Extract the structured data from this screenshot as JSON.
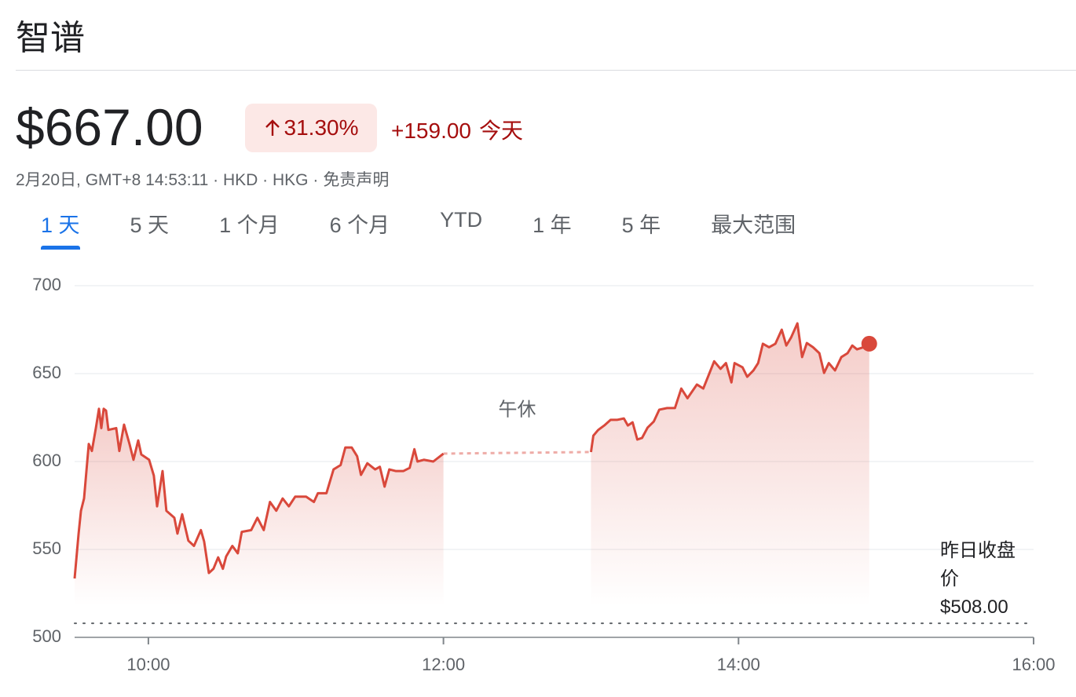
{
  "header": {
    "title": "智谱"
  },
  "quote": {
    "price": "$667.00",
    "change_percent": "31.30%",
    "change": "+159.00",
    "period": "今天",
    "meta": "2月20日, GMT+8 14:53:11 · HKD · HKG ·",
    "disclaimer": "免责声明"
  },
  "tabs": {
    "items": [
      "1 天",
      "5 天",
      "1 个月",
      "6 个月",
      "YTD",
      "1 年",
      "5 年",
      "最大范围"
    ],
    "active": 0
  },
  "chart_data": {
    "type": "line",
    "x": [
      9.5,
      9.527,
      9.543,
      9.564,
      9.58,
      9.596,
      9.617,
      9.644,
      9.665,
      9.681,
      9.697,
      9.713,
      9.729,
      9.782,
      9.803,
      9.835,
      9.872,
      9.899,
      9.931,
      9.952,
      10.005,
      10.037,
      10.059,
      10.096,
      10.122,
      10.176,
      10.197,
      10.229,
      10.271,
      10.309,
      10.356,
      10.378,
      10.41,
      10.441,
      10.473,
      10.505,
      10.527,
      10.569,
      10.606,
      10.633,
      10.697,
      10.739,
      10.782,
      10.824,
      10.867,
      10.91,
      10.952,
      10.995,
      11.069,
      11.122,
      11.149,
      11.207,
      11.255,
      11.303,
      11.335,
      11.378,
      11.415,
      11.441,
      11.484,
      11.537,
      11.569,
      11.601,
      11.633,
      11.676,
      11.729,
      11.771,
      11.803,
      11.824,
      11.867,
      11.931,
      12.0,
      12.5,
      13.0,
      13.016,
      13.048,
      13.09,
      13.133,
      13.176,
      13.223,
      13.25,
      13.282,
      13.314,
      13.346,
      13.383,
      13.426,
      13.463,
      13.516,
      13.569,
      13.612,
      13.654,
      13.718,
      13.761,
      13.793,
      13.835,
      13.878,
      13.915,
      13.952,
      13.973,
      14.027,
      14.059,
      14.101,
      14.133,
      14.165,
      14.207,
      14.25,
      14.293,
      14.324,
      14.356,
      14.399,
      14.431,
      14.463,
      14.505,
      14.548,
      14.58,
      14.612,
      14.654,
      14.697,
      14.739,
      14.771,
      14.803,
      14.846,
      14.886
    ],
    "series": [
      {
        "color": "#d9483b",
        "values": [
          533.5,
          559,
          572,
          579,
          594.6,
          610,
          606,
          619,
          630,
          619,
          630,
          629,
          618,
          619,
          606,
          621,
          610,
          601,
          612,
          604,
          601,
          592,
          574.5,
          594.6,
          572,
          568,
          559,
          570,
          555,
          552,
          561,
          554.5,
          536.6,
          539,
          545.5,
          539,
          546,
          552,
          547.8,
          560,
          561,
          568,
          561,
          577,
          572,
          579,
          574.5,
          580,
          580,
          577,
          582,
          582,
          595.5,
          598,
          608,
          608,
          603,
          592.4,
          599,
          595.5,
          597,
          585.7,
          595.5,
          594.6,
          594.6,
          596.4,
          607,
          600,
          601,
          600,
          604.5,
          null,
          605.4,
          614.7,
          617.9,
          620.5,
          623.7,
          623.7,
          624.5,
          620.5,
          622.3,
          612.5,
          613.4,
          619.2,
          622.8,
          629.5,
          630.4,
          630.4,
          641.5,
          636,
          643.8,
          641.5,
          648.2,
          657,
          652.7,
          656,
          645,
          656,
          653.6,
          648.2,
          651.8,
          656,
          667,
          665,
          667,
          675,
          666,
          670.5,
          678.6,
          659.4,
          667.4,
          665,
          661.6,
          650.4,
          656,
          651.8,
          659.4,
          661.6,
          666,
          663.8,
          665,
          667
        ]
      }
    ],
    "xlim": [
      9.5,
      16
    ],
    "xticks": [
      {
        "value": 10,
        "label": "10:00"
      },
      {
        "value": 12,
        "label": "12:00"
      },
      {
        "value": 14,
        "label": "14:00"
      },
      {
        "value": 16,
        "label": "16:00"
      }
    ],
    "ylim": [
      500,
      700
    ],
    "yticks": [
      500,
      550,
      600,
      650,
      700
    ],
    "grid": true,
    "break_label": "午休",
    "reference_line": {
      "label": "昨日收盘价",
      "value": 508,
      "value_label": "$508.00"
    }
  }
}
